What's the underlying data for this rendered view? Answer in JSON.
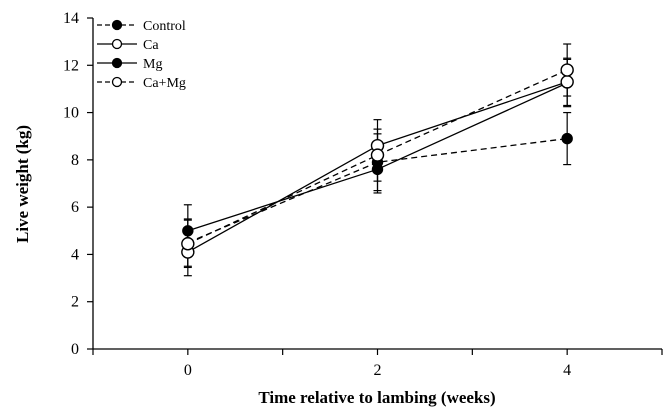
{
  "chart_data": {
    "type": "line",
    "xlabel": "Time relative to lambing (weeks)",
    "ylabel": "Live weight (kg)",
    "x": [
      0,
      2,
      4
    ],
    "xlim": [
      -1,
      5
    ],
    "ylim": [
      0,
      14
    ],
    "xticks": [
      "0",
      "2",
      "4"
    ],
    "yticks": [
      "0",
      "2",
      "4",
      "6",
      "8",
      "10",
      "12",
      "14"
    ],
    "grid": false,
    "legend_position": "top-left",
    "series": [
      {
        "name": "Control",
        "marker": "filled",
        "line": "dashed",
        "values": [
          4.5,
          7.9,
          8.9
        ],
        "errors": [
          1.0,
          1.2,
          1.1
        ]
      },
      {
        "name": "Ca",
        "marker": "open",
        "line": "solid",
        "values": [
          4.1,
          8.6,
          11.3
        ],
        "errors": [
          1.0,
          1.1,
          1.0
        ]
      },
      {
        "name": "Mg",
        "marker": "filled",
        "line": "solid",
        "values": [
          5.0,
          7.6,
          11.25
        ],
        "errors": [
          1.1,
          1.0,
          1.0
        ]
      },
      {
        "name": "Ca+Mg",
        "marker": "open",
        "line": "dashed",
        "values": [
          4.45,
          8.2,
          11.8
        ],
        "errors": [
          1.0,
          1.1,
          1.1
        ]
      }
    ]
  }
}
